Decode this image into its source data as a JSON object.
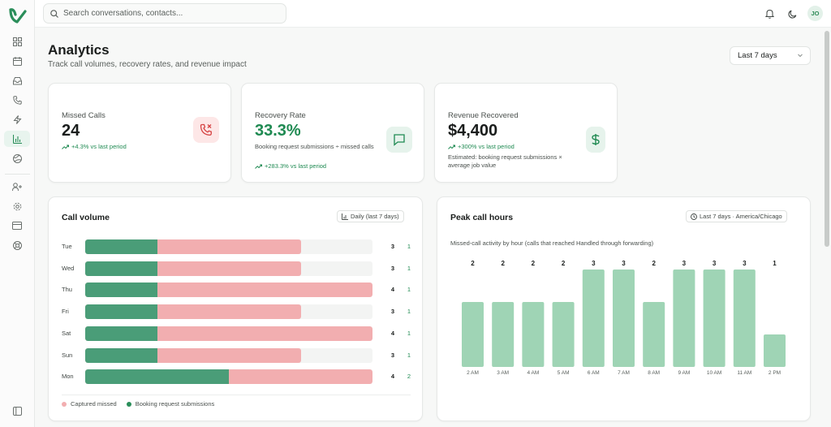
{
  "header": {
    "search_placeholder": "Search conversations, contacts...",
    "avatar_initials": "JO"
  },
  "sidebar": {
    "items": [
      {
        "name": "dashboard",
        "icon": "grid-icon"
      },
      {
        "name": "calendar",
        "icon": "calendar-icon"
      },
      {
        "name": "inbox",
        "icon": "inbox-icon"
      },
      {
        "name": "calls",
        "icon": "phone-icon"
      },
      {
        "name": "automations",
        "icon": "lightning-icon"
      },
      {
        "name": "analytics",
        "icon": "bar-chart-icon",
        "active": true
      },
      {
        "name": "integrations",
        "icon": "globe-icon"
      },
      {
        "name": "team",
        "icon": "user-plus-icon"
      },
      {
        "name": "settings",
        "icon": "gear-icon"
      },
      {
        "name": "billing",
        "icon": "credit-card-icon"
      },
      {
        "name": "support",
        "icon": "lifebuoy-icon"
      },
      {
        "name": "collapse",
        "icon": "sidebar-toggle-icon"
      }
    ]
  },
  "page": {
    "title": "Analytics",
    "subtitle": "Track call volumes, recovery rates, and revenue impact",
    "range_label": "Last 7 days"
  },
  "stats": {
    "missed": {
      "label": "Missed Calls",
      "value": "24",
      "trend": "+4.3% vs last period"
    },
    "recovery": {
      "label": "Recovery Rate",
      "value": "33.3%",
      "desc": "Booking request submissions ÷ missed calls",
      "trend": "+283.3% vs last period"
    },
    "revenue": {
      "label": "Revenue Recovered",
      "value": "$4,400",
      "trend": "+300% vs last period",
      "desc": "Estimated: booking request submissions × average job value"
    }
  },
  "colors": {
    "accent": "#1f8a52",
    "missed_bar": "#f2aeb0",
    "booked_bar": "#4a9d78",
    "peak_bar": "#9fd4b5",
    "missed_icon_bg": "#fde7e7",
    "missed_icon": "#d64545",
    "green_icon_bg": "#e6f3ec"
  },
  "call_volume": {
    "title": "Call volume",
    "chip": "Daily (last 7 days)",
    "max_value": 4,
    "legend": {
      "missed": "Captured missed",
      "booked": "Booking request submissions"
    }
  },
  "peak": {
    "title": "Peak call hours",
    "chip": "Last 7 days · America/Chicago",
    "description": "Missed-call activity by hour (calls that reached Handled through forwarding)"
  },
  "chart_data": [
    {
      "type": "bar",
      "orientation": "horizontal",
      "categories": [
        "Tue",
        "Wed",
        "Thu",
        "Fri",
        "Sat",
        "Sun",
        "Mon"
      ],
      "series": [
        {
          "name": "Captured missed",
          "values": [
            3,
            3,
            4,
            3,
            4,
            3,
            4
          ]
        },
        {
          "name": "Booking request submissions",
          "values": [
            1,
            1,
            1,
            1,
            1,
            1,
            2
          ]
        }
      ],
      "title": "Call volume",
      "legend": "bottom-left"
    },
    {
      "type": "bar",
      "categories": [
        "2 AM",
        "3 AM",
        "4 AM",
        "5 AM",
        "6 AM",
        "7 AM",
        "8 AM",
        "9 AM",
        "10 AM",
        "11 AM",
        "2 PM"
      ],
      "values": [
        2,
        2,
        2,
        2,
        3,
        3,
        2,
        3,
        3,
        3,
        1
      ],
      "title": "Peak call hours",
      "ylim": [
        0,
        3
      ]
    }
  ]
}
